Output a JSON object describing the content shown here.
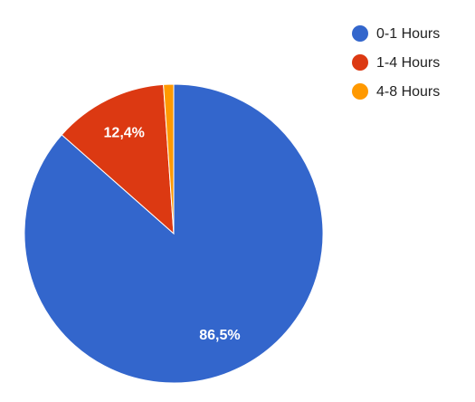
{
  "chart_data": {
    "type": "pie",
    "categories": [
      "0-1 Hours",
      "1-4 Hours",
      "4-8 Hours"
    ],
    "values": [
      86.5,
      12.4,
      1.1
    ],
    "value_labels": [
      "86,5%",
      "12,4%",
      null
    ],
    "colors": [
      "#3366cc",
      "#dc3912",
      "#ff9900"
    ],
    "legend": "top-right"
  }
}
